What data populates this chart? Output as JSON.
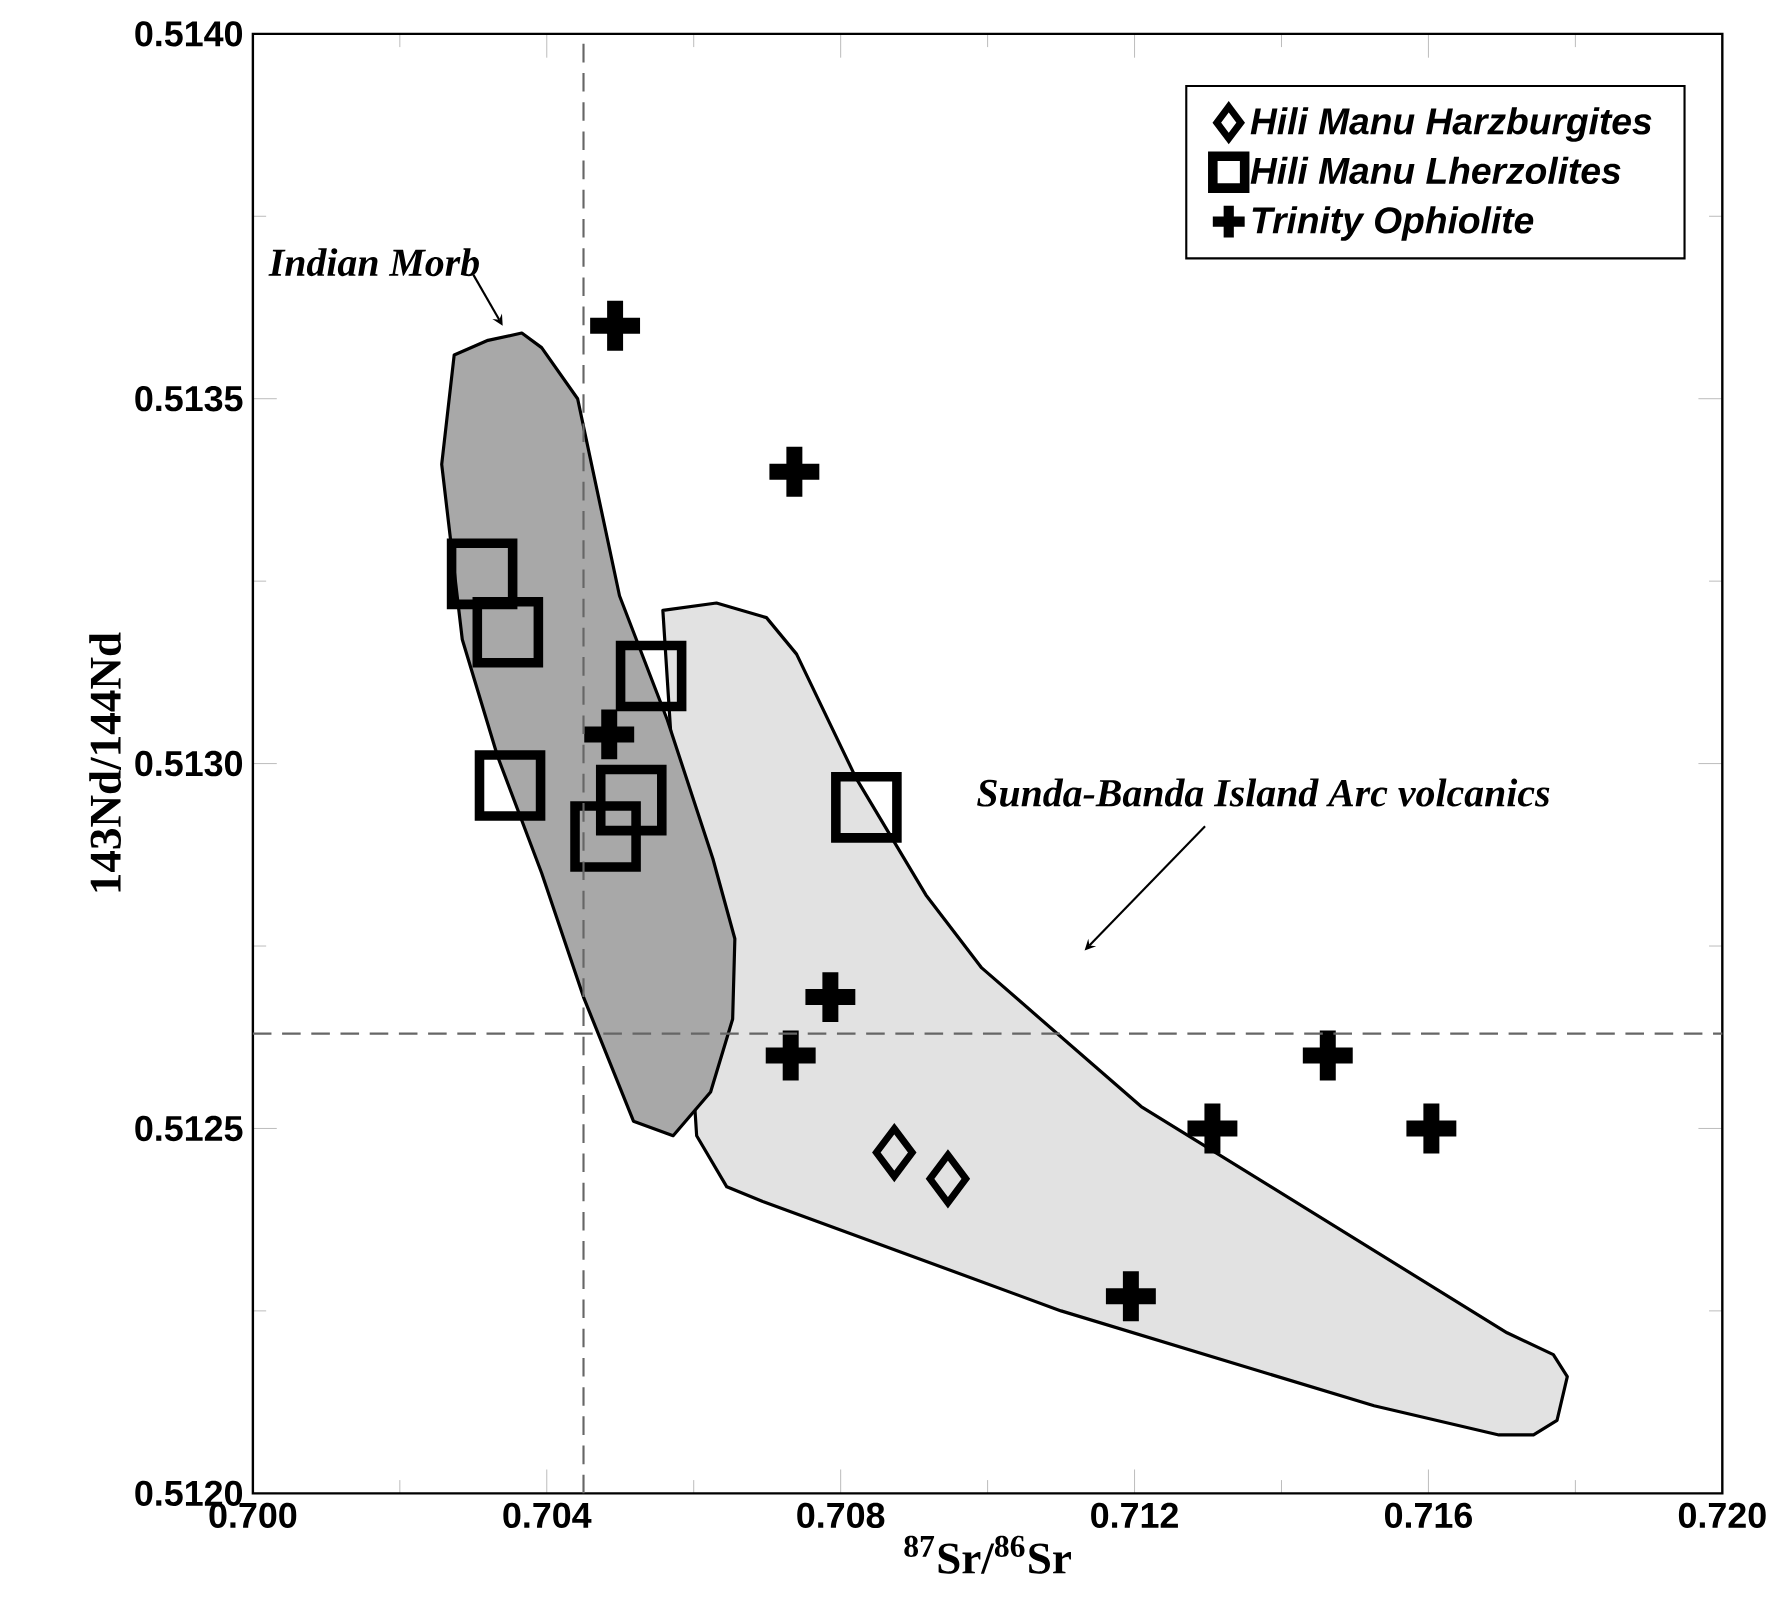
{
  "chart_data": {
    "type": "scatter",
    "xlabel": "$^{87}$Sr/$^{86}$Sr",
    "ylabel": "143Nd/144Nd",
    "xlim": [
      0.7,
      0.72
    ],
    "ylim": [
      0.512,
      0.514
    ],
    "xticks": [
      {
        "value": 0.7,
        "label": "0.700"
      },
      {
        "value": 0.704,
        "label": "0.704"
      },
      {
        "value": 0.708,
        "label": "0.708"
      },
      {
        "value": 0.712,
        "label": "0.712"
      },
      {
        "value": 0.716,
        "label": "0.716"
      },
      {
        "value": 0.72,
        "label": "0.720"
      }
    ],
    "yticks": [
      {
        "value": 0.512,
        "label": "0.5120"
      },
      {
        "value": 0.5125,
        "label": "0.5125"
      },
      {
        "value": 0.513,
        "label": "0.5130"
      },
      {
        "value": 0.5135,
        "label": "0.5135"
      },
      {
        "value": 0.514,
        "label": "0.5140"
      }
    ],
    "legend": "top right",
    "grid": false,
    "series": [
      {
        "type": "area",
        "color": "#e2e2e2",
        "x": [
          0.70558,
          0.70631,
          0.70699,
          0.7074,
          0.70821,
          0.70916,
          0.70992,
          0.71209,
          0.71707,
          0.7177,
          0.71789,
          0.71775,
          0.71743,
          0.71696,
          0.71526,
          0.711,
          0.70694,
          0.70645,
          0.70604
        ],
        "values": [
          0.51321,
          0.51322,
          0.5132,
          0.51315,
          0.51298,
          0.51282,
          0.51272,
          0.51253,
          0.51222,
          0.51219,
          0.51216,
          0.5121,
          0.51208,
          0.51208,
          0.51212,
          0.51225,
          0.5124,
          0.51242,
          0.51249
        ]
      },
      {
        "type": "area",
        "color": "#a8a8a8",
        "x": [
          0.70274,
          0.7032,
          0.70366,
          0.70393,
          0.70442,
          0.70499,
          0.70564,
          0.70626,
          0.70656,
          0.70653,
          0.70623,
          0.70572,
          0.70518,
          0.7045,
          0.70393,
          0.70333,
          0.70285,
          0.70257
        ],
        "values": [
          0.51356,
          0.51358,
          0.51359,
          0.51357,
          0.5135,
          0.51323,
          0.51306,
          0.51287,
          0.51276,
          0.51265,
          0.51255,
          0.51249,
          0.51251,
          0.51268,
          0.51285,
          0.51301,
          0.51317,
          0.51341
        ]
      },
      {
        "name": "Hili Manu Harzburgites",
        "color": "#000000",
        "marker": "diamond",
        "x": [
          0.70873,
          0.70946
        ],
        "values": [
          0.512467,
          0.512431
        ]
      },
      {
        "name": "Hili Manu Lherzolites",
        "color": "#000000",
        "marker": "square",
        "x": [
          0.70312,
          0.70347,
          0.70542,
          0.7035,
          0.70515,
          0.7048,
          0.70835
        ],
        "values": [
          0.51326,
          0.51318,
          0.51312,
          0.51297,
          0.51295,
          0.5129,
          0.51294
        ]
      },
      {
        "name": "Trinity Ophiolite",
        "color": "#000000",
        "marker": "cross",
        "x": [
          0.70493,
          0.70737,
          0.70485,
          0.70786,
          0.70732,
          0.71463,
          0.71306,
          0.71604,
          0.71195
        ],
        "values": [
          0.5136,
          0.5134,
          0.51304,
          0.51268,
          0.5126,
          0.5126,
          0.5125,
          0.5125,
          0.51227
        ]
      }
    ],
    "ref_lines": [
      {
        "axis": "x",
        "value": 0.7045,
        "line_style": "dashed"
      },
      {
        "axis": "y",
        "value": 0.51263,
        "line_style": "dashed"
      }
    ],
    "annotations": [
      "Indian Morb",
      "Sunda-Banda Island Arc volcanics"
    ]
  }
}
